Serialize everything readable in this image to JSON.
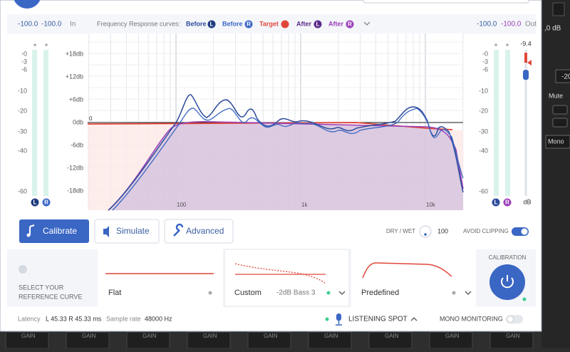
{
  "header": {
    "in_left": "-100.0",
    "in_right": "-100.0",
    "in_label": "In",
    "curves_label": "Frequency Response curves:",
    "legend": [
      {
        "name": "Before",
        "badge": "L"
      },
      {
        "name": "Before",
        "badge": "R"
      },
      {
        "name": "Target"
      },
      {
        "name": "After",
        "badge": "L"
      },
      {
        "name": "After",
        "badge": "R"
      }
    ],
    "out_left": "-100.0",
    "out_right": "-100.0",
    "out_label": "Out"
  },
  "input_meter": {
    "scale": [
      "-0",
      "-3",
      "-6",
      "-10",
      "-20",
      "-30",
      "-40",
      "-60"
    ],
    "channels": [
      "L",
      "R"
    ]
  },
  "output_meter": {
    "scale": [
      "-0",
      "-3",
      "-6",
      "-10",
      "-20",
      "-30",
      "-40",
      "-60"
    ],
    "channels": [
      "L",
      "R"
    ],
    "gain": "-9.4",
    "unit": "dB"
  },
  "plot": {
    "y_labels": [
      "+18db",
      "+12db",
      "+6db",
      "0db",
      "-6db",
      "-12db",
      "-18db"
    ],
    "zero_marker": "0",
    "x_labels": [
      "100",
      "1k",
      "10k"
    ]
  },
  "toolbar": {
    "buttons": [
      "Calibrate",
      "Simulate",
      "Advanced"
    ],
    "dry_wet_label": "DRY / WET",
    "dry_wet_value": "100",
    "avoid_clipping": "AVOID CLIPPING"
  },
  "reference": {
    "prompt": [
      "SELECT YOUR",
      "REFERENCE CURVE"
    ],
    "flat": "Flat",
    "custom": "Custom",
    "custom_preset": "-2dB Bass 3",
    "predefined": "Predefined",
    "calibration": "CALIBRATION"
  },
  "status": {
    "latency_label": "Latency",
    "latency_value": "L 45.33 R 45.33 ms",
    "sample_rate_label": "Sample rate",
    "sample_rate_value": "48000 Hz",
    "listening_spot": "LISTENING SPOT",
    "mono_monitoring": "MONO MONITORING"
  },
  "host": {
    "level": ",0 dB",
    "fader": "-20",
    "mute": "Mute",
    "mono": "Mono",
    "gain_labels": [
      "GAIN",
      "GAIN",
      "GAIN",
      "GAIN",
      "GAIN",
      "GAIN",
      "GAIN",
      "GAIN",
      "GAIN"
    ]
  }
}
